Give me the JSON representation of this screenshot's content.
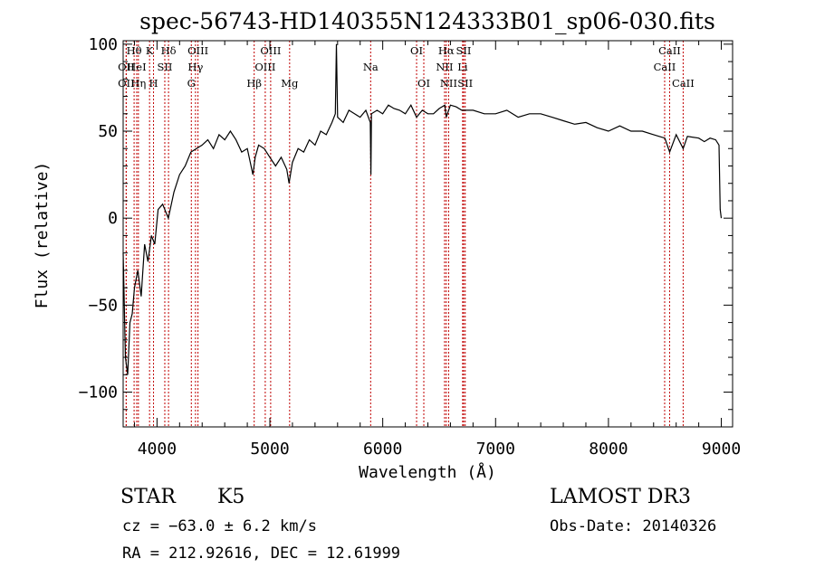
{
  "chart_data": {
    "type": "line",
    "title": "spec-56743-HD140355N124333B01_sp06-030.fits",
    "xlabel": "Wavelength (Å)",
    "ylabel": "Flux (relative)",
    "xlim": [
      3700,
      9100
    ],
    "ylim": [
      -120,
      102
    ],
    "x_ticks": [
      4000,
      5000,
      6000,
      7000,
      8000,
      9000
    ],
    "x_tick_labels": [
      "4000",
      "5000",
      "6000",
      "7000",
      "8000",
      "9000"
    ],
    "y_ticks": [
      -100,
      -50,
      0,
      50,
      100
    ],
    "y_tick_labels": [
      "−100",
      "−50",
      "0",
      "50",
      "100"
    ],
    "series": [
      {
        "name": "flux",
        "x": [
          3700,
          3720,
          3740,
          3760,
          3780,
          3800,
          3830,
          3860,
          3890,
          3920,
          3950,
          3980,
          4010,
          4050,
          4100,
          4150,
          4200,
          4250,
          4300,
          4350,
          4400,
          4450,
          4500,
          4550,
          4600,
          4650,
          4700,
          4750,
          4800,
          4850,
          4870,
          4900,
          4950,
          5000,
          5050,
          5100,
          5150,
          5170,
          5200,
          5250,
          5300,
          5350,
          5400,
          5450,
          5500,
          5550,
          5580,
          5590,
          5600,
          5650,
          5700,
          5750,
          5800,
          5850,
          5890,
          5895,
          5900,
          5950,
          6000,
          6050,
          6100,
          6150,
          6200,
          6250,
          6300,
          6350,
          6400,
          6450,
          6500,
          6550,
          6563,
          6600,
          6650,
          6700,
          6750,
          6800,
          6900,
          7000,
          7100,
          7200,
          7300,
          7400,
          7500,
          7600,
          7700,
          7800,
          7900,
          8000,
          8100,
          8200,
          8300,
          8400,
          8500,
          8542,
          8600,
          8662,
          8700,
          8800,
          8850,
          8900,
          8950,
          8980,
          8990,
          9000
        ],
        "y": [
          -20,
          -80,
          -90,
          -60,
          -55,
          -40,
          -30,
          -45,
          -15,
          -25,
          -10,
          -15,
          5,
          8,
          0,
          15,
          25,
          30,
          38,
          40,
          42,
          45,
          40,
          48,
          45,
          50,
          45,
          38,
          40,
          25,
          35,
          42,
          40,
          35,
          30,
          35,
          28,
          20,
          32,
          40,
          38,
          45,
          42,
          50,
          48,
          55,
          60,
          100,
          58,
          55,
          62,
          60,
          58,
          62,
          55,
          25,
          60,
          62,
          60,
          65,
          63,
          62,
          60,
          65,
          58,
          62,
          60,
          60,
          63,
          65,
          58,
          65,
          64,
          62,
          62,
          62,
          60,
          60,
          62,
          58,
          60,
          60,
          58,
          56,
          54,
          55,
          52,
          50,
          53,
          50,
          50,
          48,
          46,
          38,
          48,
          40,
          47,
          46,
          44,
          46,
          45,
          42,
          5,
          0
        ]
      }
    ],
    "spectral_lines": [
      {
        "label": "OII",
        "x": 3727,
        "row": 2
      },
      {
        "label": "Hθ",
        "x": 3797,
        "row": 1
      },
      {
        "label": "OII",
        "x": 3727,
        "row": 3
      },
      {
        "label": "HeI",
        "x": 3820,
        "row": 2
      },
      {
        "label": "Hη",
        "x": 3835,
        "row": 3
      },
      {
        "label": "K",
        "x": 3934,
        "row": 1
      },
      {
        "label": "H",
        "x": 3969,
        "row": 3
      },
      {
        "label": "SII",
        "x": 4069,
        "row": 2
      },
      {
        "label": "Hδ",
        "x": 4102,
        "row": 1
      },
      {
        "label": "OIII",
        "x": 4363,
        "row": 1
      },
      {
        "label": "Hγ",
        "x": 4341,
        "row": 2
      },
      {
        "label": "G",
        "x": 4304,
        "row": 3
      },
      {
        "label": "Hβ",
        "x": 4861,
        "row": 3
      },
      {
        "label": "OIII",
        "x": 4959,
        "row": 2
      },
      {
        "label": "OIII",
        "x": 5007,
        "row": 1
      },
      {
        "label": "Mg",
        "x": 5175,
        "row": 3
      },
      {
        "label": "Na",
        "x": 5893,
        "row": 2
      },
      {
        "label": "OI",
        "x": 6300,
        "row": 1
      },
      {
        "label": "OI",
        "x": 6364,
        "row": 3
      },
      {
        "label": "Hα",
        "x": 6563,
        "row": 1
      },
      {
        "label": "NII",
        "x": 6548,
        "row": 2
      },
      {
        "label": "NII",
        "x": 6584,
        "row": 3
      },
      {
        "label": "SII",
        "x": 6717,
        "row": 1
      },
      {
        "label": "Li",
        "x": 6708,
        "row": 2
      },
      {
        "label": "SII",
        "x": 6731,
        "row": 3
      },
      {
        "label": "CaII",
        "x": 8542,
        "row": 1
      },
      {
        "label": "CaII",
        "x": 8498,
        "row": 2
      },
      {
        "label": "CaII",
        "x": 8662,
        "row": 3
      }
    ]
  },
  "info": {
    "object_class": "STAR",
    "subclass": "K5",
    "survey": "LAMOST DR3",
    "redshift": "cz = −63.0 ± 6.2 km/s",
    "obs_date": "Obs-Date: 20140326",
    "coords": "RA = 212.92616, DEC =  12.61999"
  }
}
